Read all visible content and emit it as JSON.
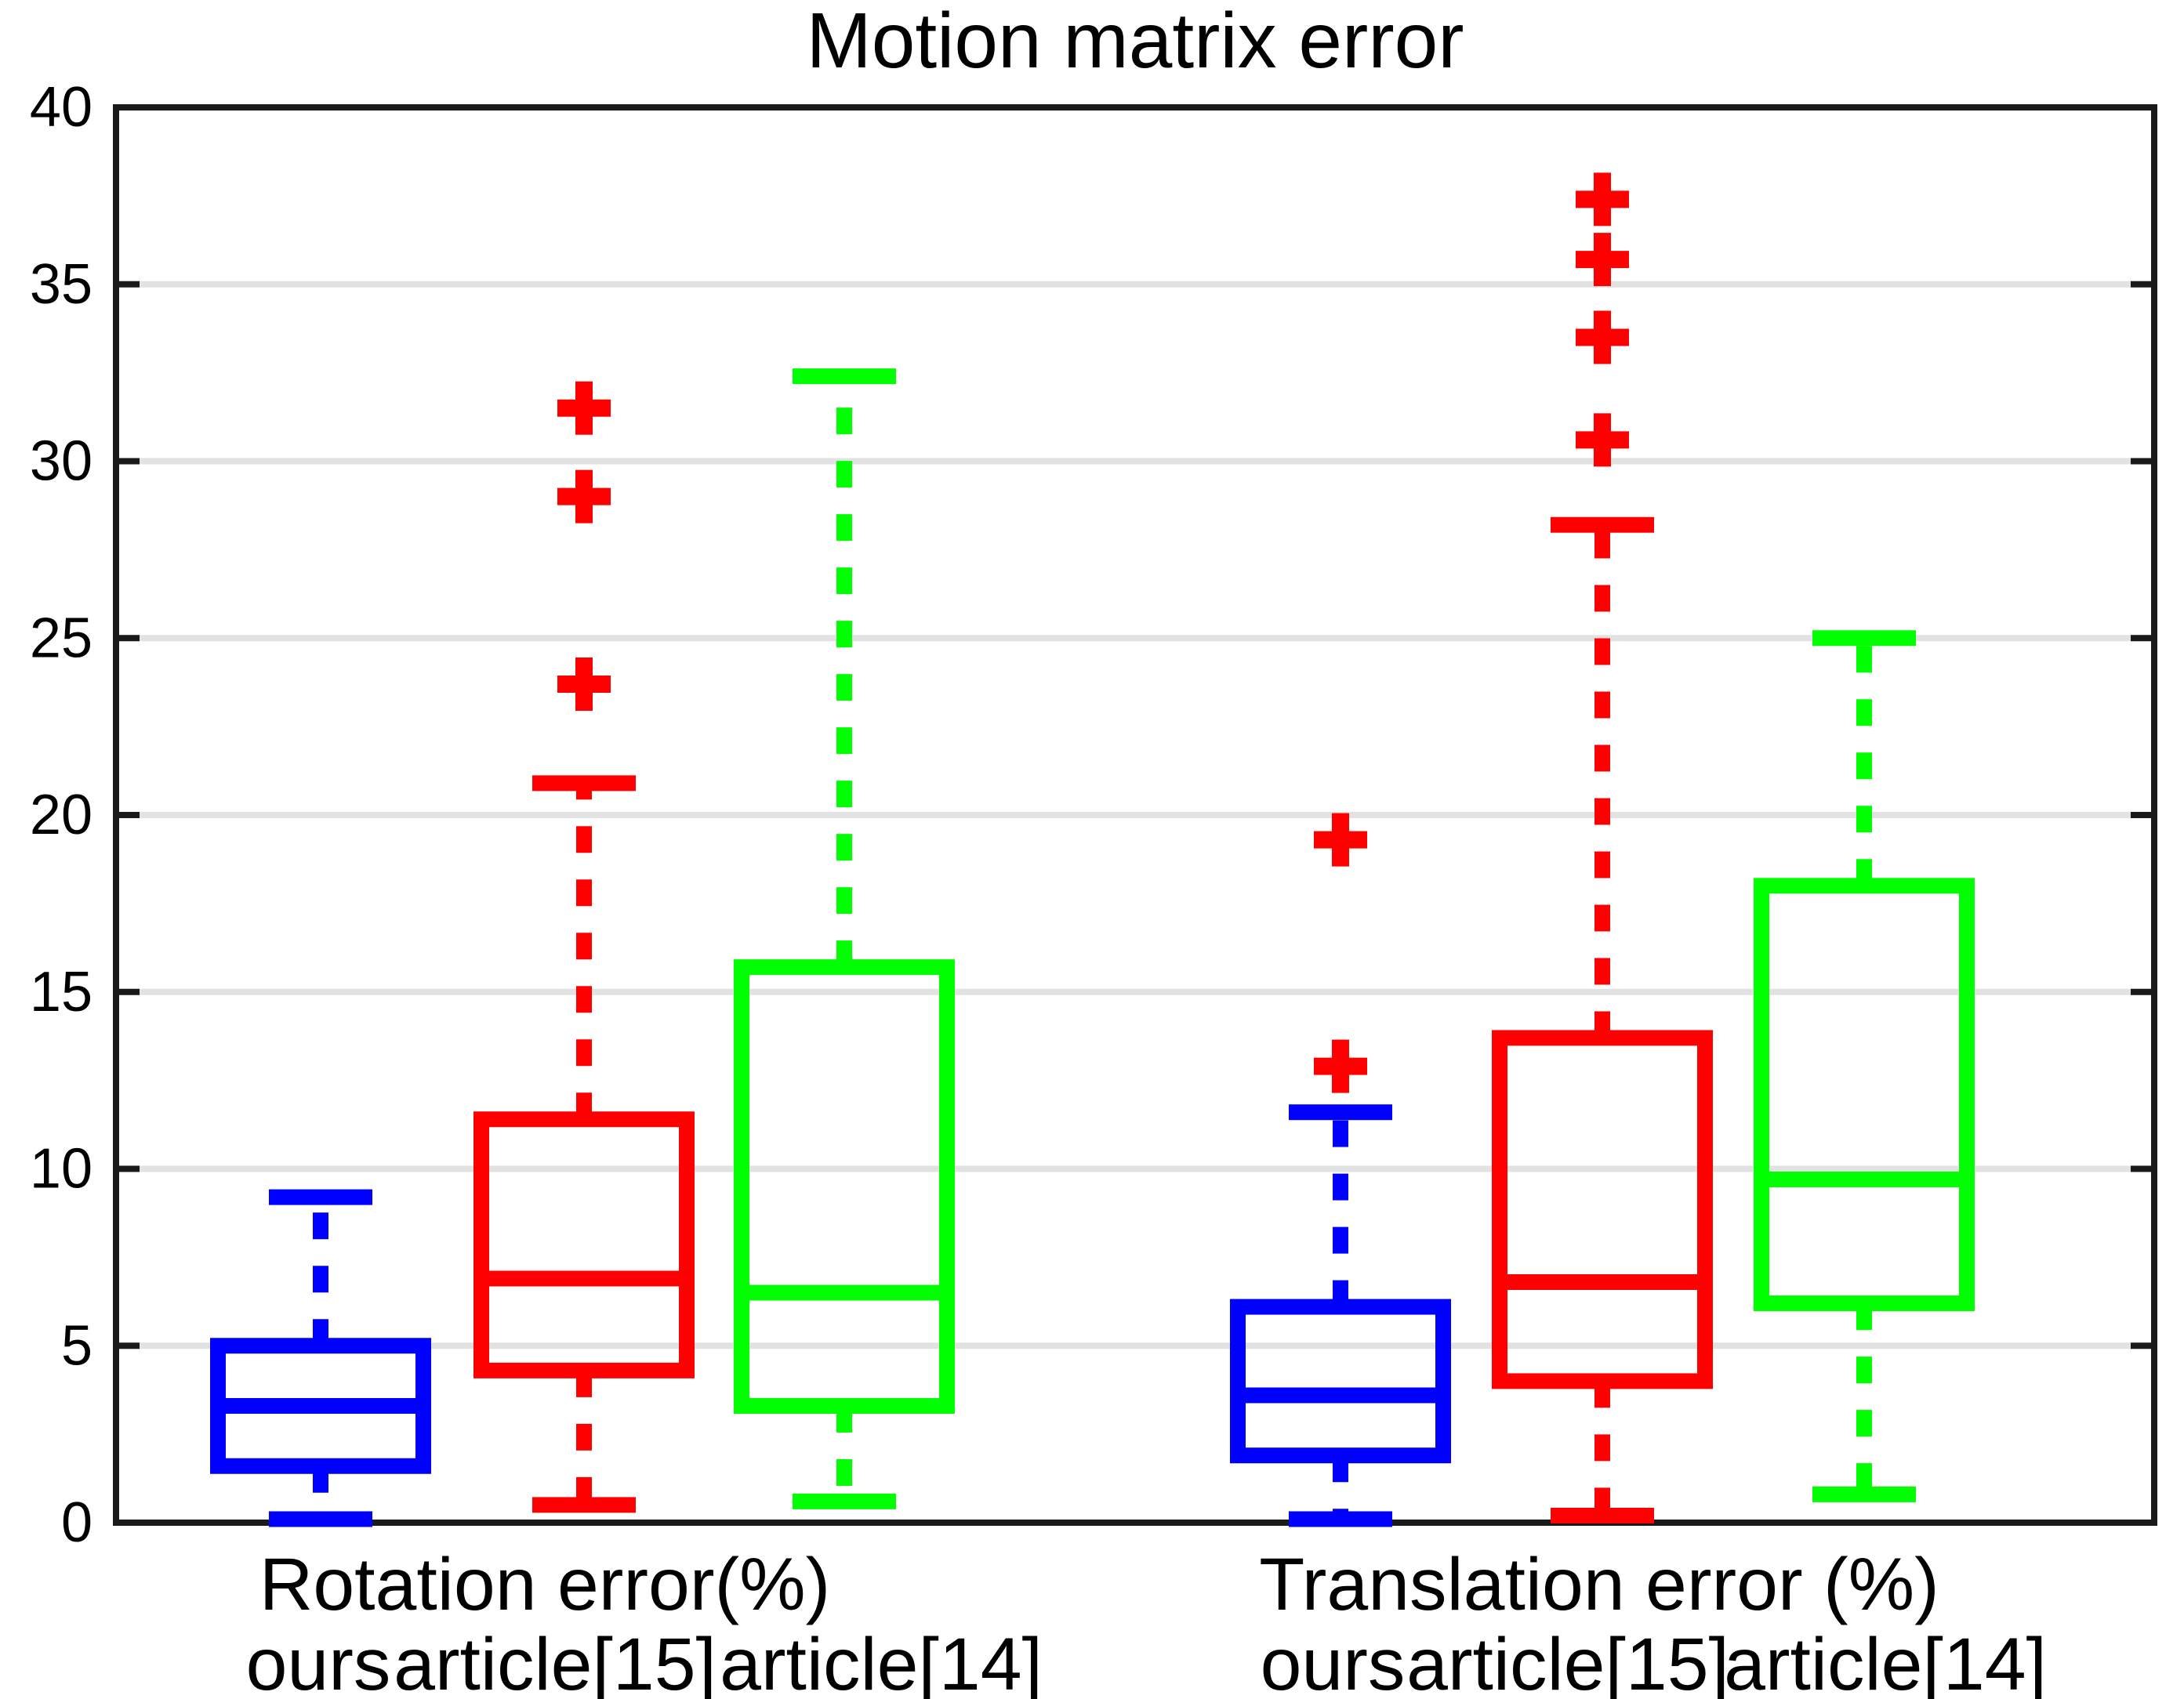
{
  "figure": {
    "title": "Motion matrix error",
    "background_color": "#ffffff"
  },
  "chart_data": {
    "type": "boxplot",
    "title": "Motion matrix error",
    "ylim": [
      0,
      40
    ],
    "yticks": [
      0,
      5,
      10,
      15,
      20,
      25,
      30,
      35,
      40
    ],
    "grid": "horizontal gridlines at every 5 units, light gray, full plot width",
    "legend_position": "none",
    "orientation": "vertical",
    "colors": {
      "ours": "#0000ff",
      "article15": "#ff0000",
      "article14": "#00ff00",
      "outlier_marker": "#ff0000",
      "axis": "#1a1a1a",
      "gridline": "#e2e2e2",
      "text": "#000000"
    },
    "outlier_marker_symbol": "+",
    "groups": [
      {
        "label": "Rotation error(%)",
        "series": [
          {
            "name": "ours",
            "color": "#0000ff",
            "whisker_low": 0.1,
            "q1": 1.6,
            "median": 3.3,
            "q3": 5.0,
            "whisker_high": 9.2,
            "outliers": []
          },
          {
            "name": "article[15]",
            "color": "#ff0000",
            "whisker_low": 0.5,
            "q1": 4.3,
            "median": 6.9,
            "q3": 11.4,
            "whisker_high": 20.9,
            "outliers": [
              23.7,
              29.0,
              31.5
            ]
          },
          {
            "name": "article[14]",
            "color": "#00ff00",
            "whisker_low": 0.6,
            "q1": 3.3,
            "median": 6.5,
            "q3": 15.7,
            "whisker_high": 32.4,
            "outliers": []
          }
        ]
      },
      {
        "label": "Translation error (%)",
        "series": [
          {
            "name": "ours",
            "color": "#0000ff",
            "whisker_low": 0.1,
            "q1": 1.9,
            "median": 3.6,
            "q3": 6.1,
            "whisker_high": 11.6,
            "outliers": [
              12.9,
              19.3
            ]
          },
          {
            "name": "article[15]",
            "color": "#ff0000",
            "whisker_low": 0.2,
            "q1": 4.0,
            "median": 6.8,
            "q3": 13.7,
            "whisker_high": 28.2,
            "outliers": [
              30.6,
              33.5,
              35.7,
              37.4
            ]
          },
          {
            "name": "article[14]",
            "color": "#00ff00",
            "whisker_low": 0.8,
            "q1": 6.2,
            "median": 9.7,
            "q3": 18.0,
            "whisker_high": 25.0,
            "outliers": []
          }
        ]
      }
    ]
  }
}
